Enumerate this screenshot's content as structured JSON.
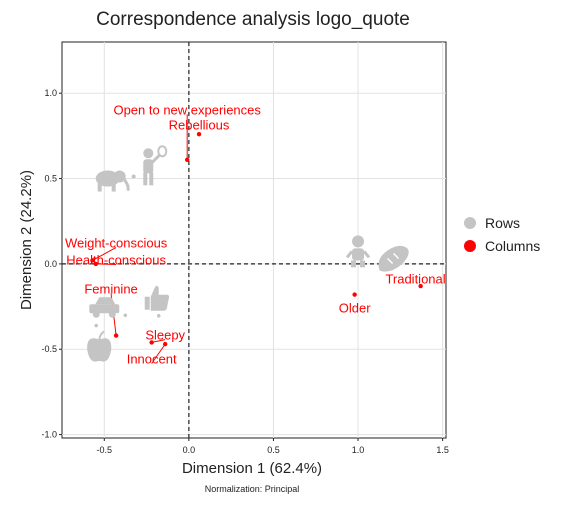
{
  "chart_data": {
    "type": "scatter",
    "title": "Correspondence analysis logo_quote",
    "xlabel": "Dimension 1 (62.4%)",
    "ylabel": "Dimension 2 (24.2%)",
    "note": "Normalization: Principal",
    "xlim": [
      -0.75,
      1.52
    ],
    "ylim": [
      -1.02,
      1.3
    ],
    "xticks": [
      -0.5,
      0.0,
      0.5,
      1.0,
      1.5
    ],
    "xtick_labels": [
      "-0.5",
      "0.0",
      "0.5",
      "1.0",
      "1.5"
    ],
    "yticks": [
      -1.0,
      -0.5,
      0.0,
      0.5,
      1.0
    ],
    "ytick_labels": [
      "-1.0",
      "-0.5",
      "0.0",
      "0.5",
      "1.0"
    ],
    "grid": true,
    "legend": {
      "placement": "right",
      "items": [
        {
          "label": "Rows",
          "color": "#c4c4c4"
        },
        {
          "label": "Columns",
          "color": "#ff0000"
        }
      ]
    },
    "rows": [
      {
        "icon": "elephant-icon",
        "x": -0.48,
        "y": 0.5
      },
      {
        "icon": "tennis-player-icon",
        "x": -0.24,
        "y": 0.56
      },
      {
        "icon": "baby-icon",
        "x": 1.0,
        "y": 0.05
      },
      {
        "icon": "bread-icon",
        "x": 1.21,
        "y": 0.02
      },
      {
        "icon": "car-icon",
        "x": -0.5,
        "y": -0.26
      },
      {
        "icon": "thumbs-up-icon",
        "x": -0.19,
        "y": -0.21
      },
      {
        "icon": "apple-icon",
        "x": -0.53,
        "y": -0.49
      }
    ],
    "columns": [
      {
        "label": "Open to new experiences",
        "x": -0.01,
        "y": 0.61,
        "label_x": -0.01,
        "label_y": 0.9
      },
      {
        "label": "Rebellious",
        "x": 0.06,
        "y": 0.76,
        "label_x": 0.06,
        "label_y": 0.81
      },
      {
        "label": "Weight-conscious",
        "x": -0.57,
        "y": 0.02,
        "label_x": -0.43,
        "label_y": 0.12
      },
      {
        "label": "Health-conscious",
        "x": -0.55,
        "y": 0.0,
        "label_x": -0.43,
        "label_y": 0.02
      },
      {
        "label": "Feminine",
        "x": -0.43,
        "y": -0.42,
        "label_x": -0.46,
        "label_y": -0.15
      },
      {
        "label": "Sleepy",
        "x": -0.22,
        "y": -0.46,
        "label_x": -0.14,
        "label_y": -0.42
      },
      {
        "label": "Innocent",
        "x": -0.14,
        "y": -0.47,
        "label_x": -0.22,
        "label_y": -0.56
      },
      {
        "label": "Older",
        "x": 0.98,
        "y": -0.18,
        "label_x": 0.98,
        "label_y": -0.26
      },
      {
        "label": "Traditional",
        "x": 1.37,
        "y": -0.13,
        "label_x": 1.34,
        "label_y": -0.09
      }
    ]
  }
}
